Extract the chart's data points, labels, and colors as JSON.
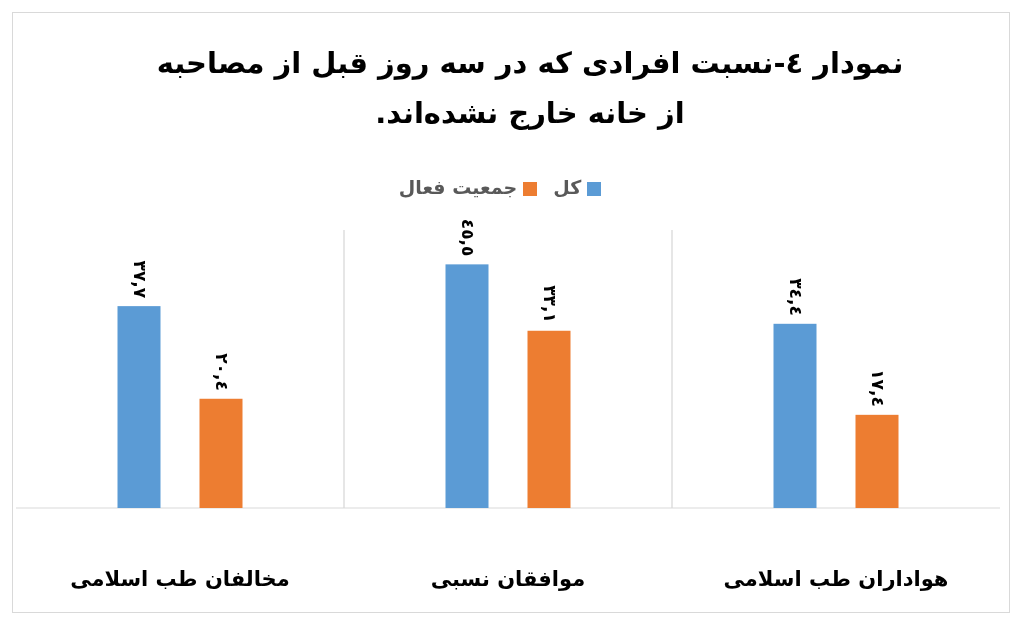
{
  "chart_data": {
    "type": "bar",
    "title": "نمودار ٤-نسبت افرادی که در سه روز قبل از مصاحبه از خانه خارج نشده‌اند.",
    "categories": [
      "مخالفان طب اسلامی",
      "موافقان نسبی",
      "هواداران طب اسلامی"
    ],
    "series": [
      {
        "name": "کل",
        "color": "#5b9bd5",
        "values": [
          37.7,
          45.5,
          34.4
        ],
        "value_labels": [
          "٣٧,٧",
          "٤٥,٥",
          "٣٤,٤"
        ]
      },
      {
        "name": "جمعیت فعال",
        "color": "#ed7d31",
        "values": [
          20.4,
          33.1,
          17.4
        ],
        "value_labels": [
          "٢٠,٤",
          "٣٣,١",
          "١٧,٤"
        ]
      }
    ],
    "legend": "top",
    "grid": false
  }
}
